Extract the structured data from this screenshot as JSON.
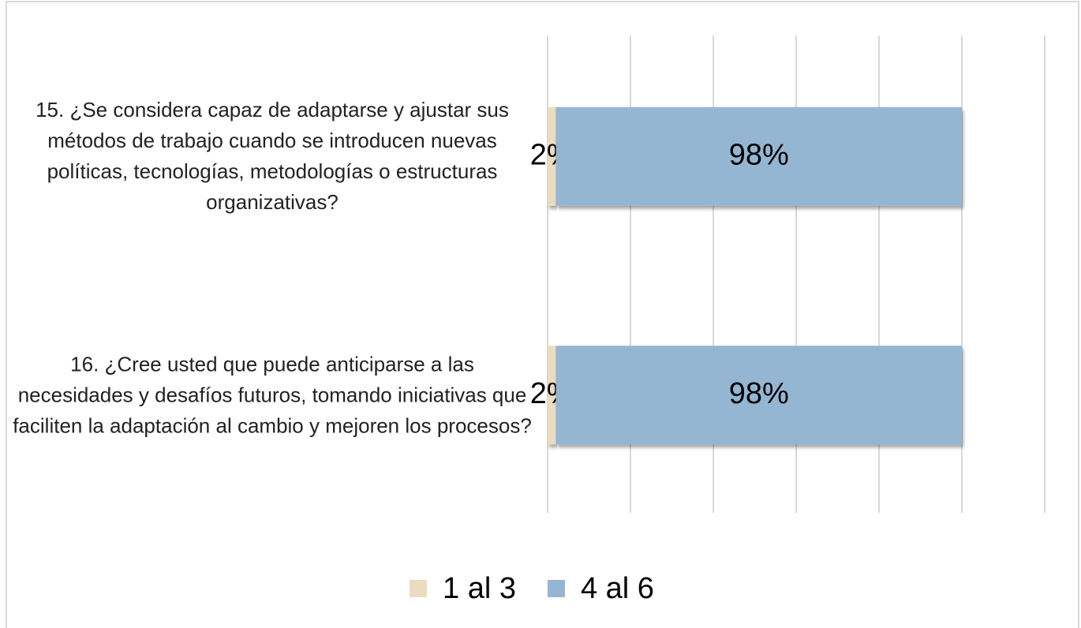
{
  "chart_data": {
    "type": "hbar_stacked",
    "categories": [
      "15. ¿Se considera capaz de adaptarse y ajustar sus métodos de trabajo cuando se introducen nuevas políticas, tecnologías, metodologías o estructuras organizativas?",
      "16. ¿Cree usted que puede anticiparse a las necesidades y desafíos futuros, tomando iniciativas que faciliten la adaptación al cambio y mejoren los procesos?"
    ],
    "series": [
      {
        "name": "1 al 3",
        "color": "#eadcc0",
        "values": [
          2,
          2
        ],
        "value_labels": [
          "2%",
          "2%"
        ]
      },
      {
        "name": "4 al 6",
        "color": "#94b6d3",
        "values": [
          98,
          98
        ],
        "value_labels": [
          "98%",
          "98%"
        ]
      }
    ],
    "xlim": [
      0,
      120
    ],
    "xticks": [
      0,
      20,
      40,
      60,
      80,
      100,
      120
    ],
    "grid": true,
    "legend": "bottom"
  }
}
